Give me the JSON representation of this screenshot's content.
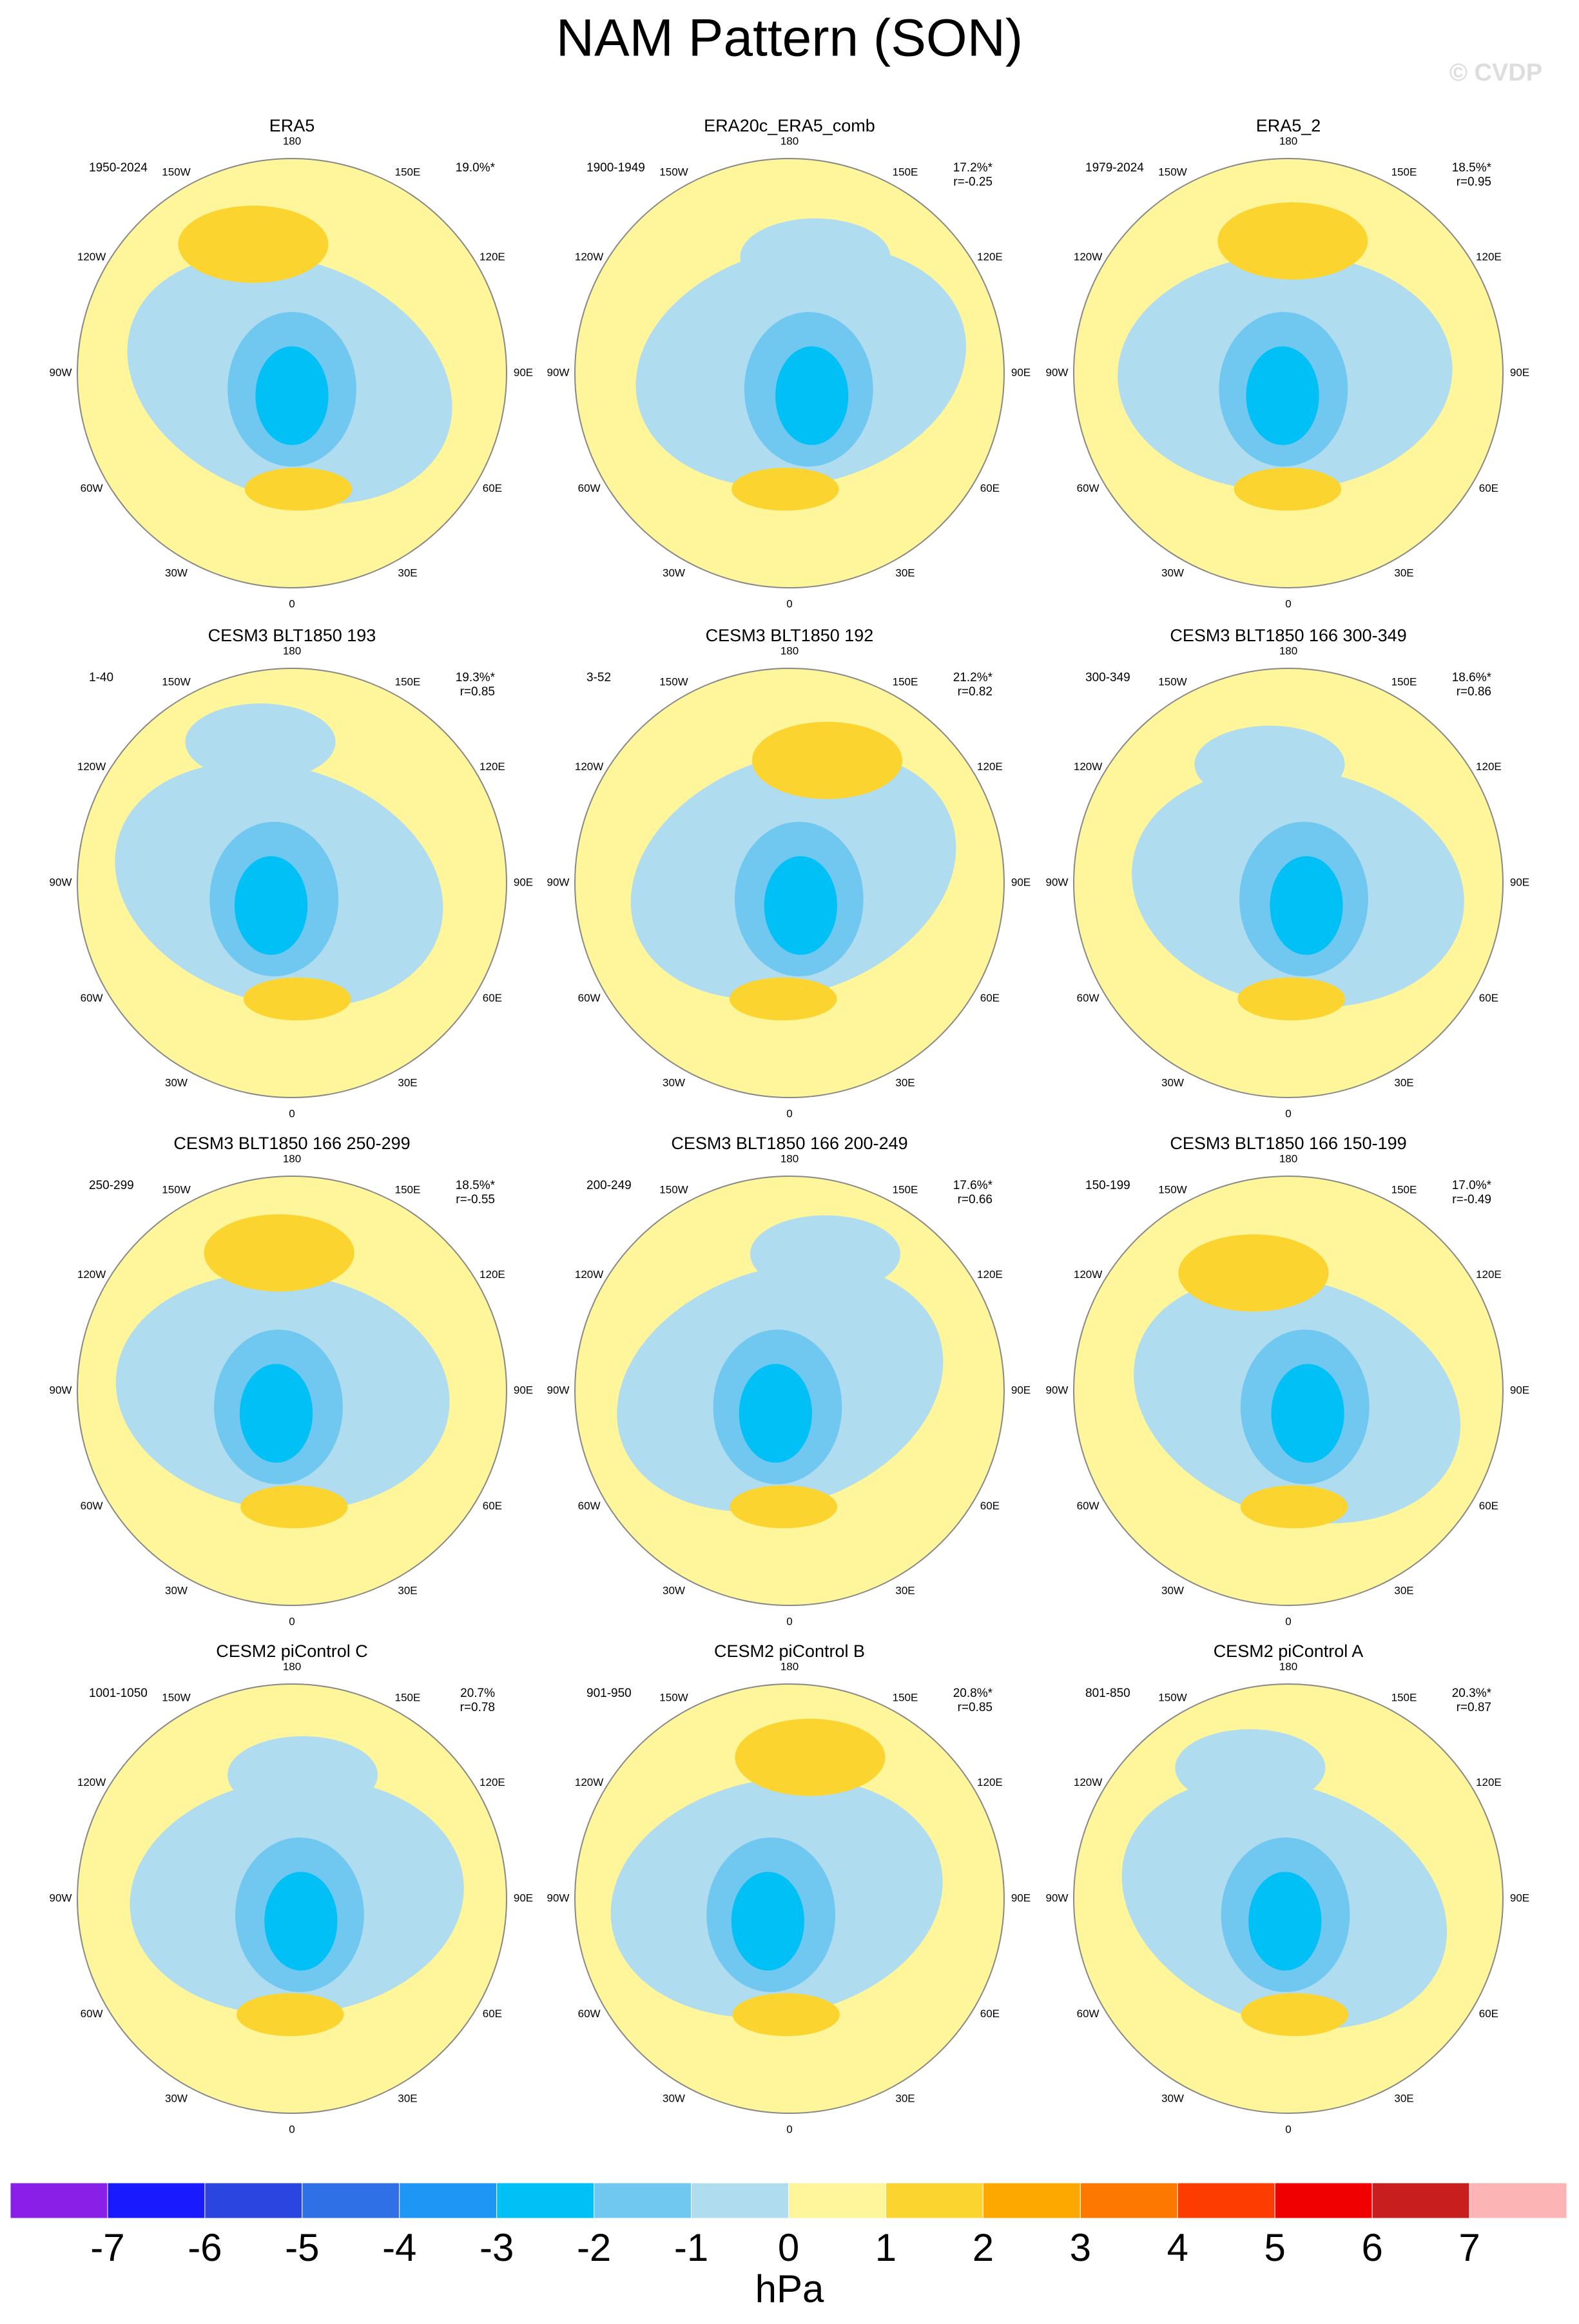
{
  "title": "NAM Pattern (SON)",
  "watermark": "© CVDP",
  "lon_labels": [
    "180",
    "150E",
    "120E",
    "90E",
    "60E",
    "30E",
    "0",
    "30W",
    "60W",
    "90W",
    "120W",
    "150W"
  ],
  "panels": [
    {
      "title": "ERA5",
      "period": "1950-2024",
      "pct": "19.0%*"
    },
    {
      "title": "ERA20c_ERA5_comb",
      "period": "1900-1949",
      "pct": "17.2%*",
      "r": "r=-0.25"
    },
    {
      "title": "ERA5_2",
      "period": "1979-2024",
      "pct": "18.5%*",
      "r": "r=0.95"
    },
    {
      "title": "CESM3 BLT1850 193",
      "period": "1-40",
      "pct": "19.3%*",
      "r": "r=0.85"
    },
    {
      "title": "CESM3 BLT1850 192",
      "period": "3-52",
      "pct": "21.2%*",
      "r": "r=0.82"
    },
    {
      "title": "CESM3 BLT1850 166 300-349",
      "period": "300-349",
      "pct": "18.6%*",
      "r": "r=0.86"
    },
    {
      "title": "CESM3 BLT1850 166 250-299",
      "period": "250-299",
      "pct": "18.5%*",
      "r": "r=-0.55"
    },
    {
      "title": "CESM3 BLT1850 166 200-249",
      "period": "200-249",
      "pct": "17.6%*",
      "r": "r=0.66"
    },
    {
      "title": "CESM3 BLT1850 166 150-199",
      "period": "150-199",
      "pct": "17.0%*",
      "r": "r=-0.49"
    },
    {
      "title": "CESM2 piControl C",
      "period": "1001-1050",
      "pct": "20.7%",
      "r": "r=0.78"
    },
    {
      "title": "CESM2 piControl B",
      "period": "901-950",
      "pct": "20.8%*",
      "r": "r=0.85"
    },
    {
      "title": "CESM2 piControl A",
      "period": "801-850",
      "pct": "20.3%*",
      "r": "r=0.87"
    }
  ],
  "colorbar": {
    "labels": [
      "-7",
      "-6",
      "-5",
      "-4",
      "-3",
      "-2",
      "-1",
      "0",
      "1",
      "2",
      "3",
      "4",
      "5",
      "6",
      "7"
    ],
    "colors": [
      "#8a1fe8",
      "#1a1aff",
      "#2b45e0",
      "#3070e6",
      "#1e96f5",
      "#00c0f5",
      "#70c8f0",
      "#b0dcf0",
      "#fff59a",
      "#fcd430",
      "#fca800",
      "#fc7800",
      "#fc3c00",
      "#f00000",
      "#c81e1e",
      "#fcb4b4"
    ],
    "unit": "hPa"
  }
}
